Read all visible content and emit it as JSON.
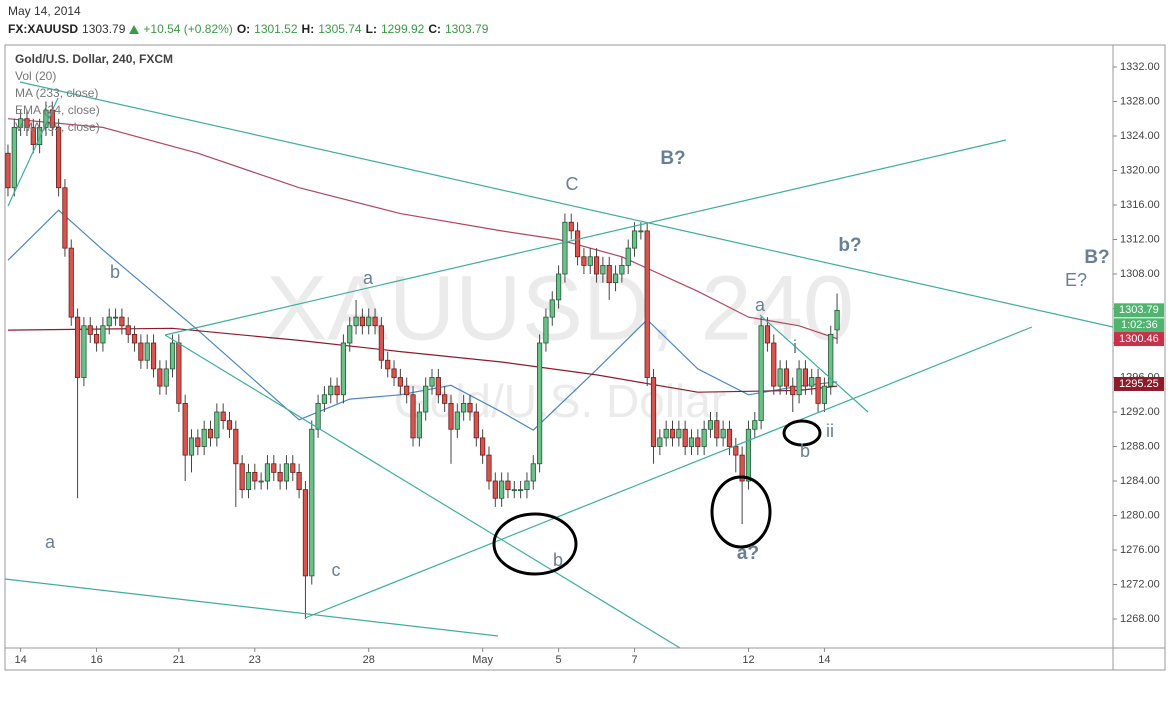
{
  "header": {
    "date": "May 14, 2014",
    "symbol": "FX:XAUUSD",
    "last": 1303.79,
    "change": "+10.54 (+0.82%)",
    "o_label": "O:",
    "open": 1301.52,
    "h_label": "H:",
    "high": 1305.74,
    "l_label": "L:",
    "low": 1299.92,
    "c_label": "C:",
    "close": 1303.79
  },
  "chart_data": {
    "type": "candlestick",
    "title": "Gold/U.S. Dollar, 240, FXCM",
    "volume_label": "Vol (20)",
    "watermark": [
      "XAUUSD, 240",
      "Gold/U.S. Dollar"
    ],
    "colors": {
      "up": "#6cc08a",
      "down": "#d9534f",
      "up_border": "#1f5a35",
      "down_border": "#6b1e1a",
      "wick": "#444444"
    },
    "grid": false,
    "ylim": [
      1264.64,
      1334.55
    ],
    "xlim": [
      -0.47,
      174.6
    ],
    "yticks": [
      {
        "value": 1268,
        "label": "1268.00"
      },
      {
        "value": 1272,
        "label": "1272.00"
      },
      {
        "value": 1276,
        "label": "1276.00"
      },
      {
        "value": 1280,
        "label": "1280.00"
      },
      {
        "value": 1284,
        "label": "1284.00"
      },
      {
        "value": 1288,
        "label": "1288.00"
      },
      {
        "value": 1292,
        "label": "1292.00"
      },
      {
        "value": 1296,
        "label": "1296.00"
      },
      {
        "value": 1300,
        "label": "1300.00"
      },
      {
        "value": 1304,
        "label": "1304.00"
      },
      {
        "value": 1308,
        "label": "1308.00"
      },
      {
        "value": 1312,
        "label": "1312.00"
      },
      {
        "value": 1316,
        "label": "1316.00"
      },
      {
        "value": 1320,
        "label": "1320.00"
      },
      {
        "value": 1324,
        "label": "1324.00"
      },
      {
        "value": 1328,
        "label": "1328.00"
      },
      {
        "value": 1332,
        "label": "1332.00"
      }
    ],
    "xticks": [
      {
        "value": 2,
        "label": "14"
      },
      {
        "value": 14,
        "label": "16"
      },
      {
        "value": 27,
        "label": "21"
      },
      {
        "value": 39,
        "label": "23"
      },
      {
        "value": 57,
        "label": "28"
      },
      {
        "value": 75,
        "label": "May"
      },
      {
        "value": 87,
        "label": "5"
      },
      {
        "value": 99,
        "label": "7"
      },
      {
        "value": 117,
        "label": "12"
      },
      {
        "value": 129,
        "label": "14"
      }
    ],
    "ohlc": [
      [
        1322,
        1323,
        1317,
        1318
      ],
      [
        1318,
        1326,
        1317,
        1325
      ],
      [
        1325,
        1327,
        1324,
        1326
      ],
      [
        1326,
        1327,
        1324,
        1325
      ],
      [
        1325,
        1326,
        1322,
        1323
      ],
      [
        1323,
        1326,
        1322,
        1325
      ],
      [
        1325,
        1328,
        1324,
        1327
      ],
      [
        1327,
        1328,
        1324,
        1325
      ],
      [
        1325,
        1326,
        1317,
        1318
      ],
      [
        1318,
        1319,
        1310,
        1311
      ],
      [
        1311,
        1312,
        1302,
        1303
      ],
      [
        1303,
        1304,
        1282,
        1296
      ],
      [
        1296,
        1303,
        1295,
        1302
      ],
      [
        1302,
        1303,
        1300,
        1301
      ],
      [
        1301,
        1302,
        1299,
        1300
      ],
      [
        1300,
        1303,
        1299,
        1302
      ],
      [
        1302,
        1304,
        1301,
        1303
      ],
      [
        1303,
        1304,
        1302,
        1303
      ],
      [
        1303,
        1304,
        1301,
        1302
      ],
      [
        1302,
        1303,
        1300,
        1301
      ],
      [
        1301,
        1302,
        1299,
        1300
      ],
      [
        1300,
        1301,
        1297,
        1298
      ],
      [
        1298,
        1301,
        1297,
        1300
      ],
      [
        1300,
        1301,
        1296,
        1297
      ],
      [
        1297,
        1298,
        1294,
        1295
      ],
      [
        1295,
        1298,
        1294,
        1297
      ],
      [
        1297,
        1301,
        1296,
        1300
      ],
      [
        1300,
        1301,
        1292,
        1293
      ],
      [
        1293,
        1294,
        1284,
        1287
      ],
      [
        1287,
        1290,
        1285,
        1289
      ],
      [
        1289,
        1290,
        1287,
        1288
      ],
      [
        1288,
        1291,
        1287,
        1290
      ],
      [
        1290,
        1291,
        1288,
        1289
      ],
      [
        1289,
        1293,
        1288,
        1292
      ],
      [
        1292,
        1293,
        1290,
        1291
      ],
      [
        1291,
        1292,
        1289,
        1290
      ],
      [
        1290,
        1291,
        1281,
        1286
      ],
      [
        1286,
        1287,
        1282,
        1283
      ],
      [
        1283,
        1286,
        1282,
        1285
      ],
      [
        1285,
        1286,
        1283,
        1284
      ],
      [
        1284,
        1285,
        1283,
        1284
      ],
      [
        1284,
        1287,
        1283,
        1286
      ],
      [
        1286,
        1287,
        1284,
        1285
      ],
      [
        1285,
        1286,
        1283,
        1284
      ],
      [
        1284,
        1287,
        1283,
        1286
      ],
      [
        1286,
        1287,
        1284,
        1285
      ],
      [
        1285,
        1286,
        1282,
        1283
      ],
      [
        1283,
        1284,
        1268,
        1273
      ],
      [
        1273,
        1291,
        1272,
        1290
      ],
      [
        1290,
        1294,
        1289,
        1293
      ],
      [
        1293,
        1295,
        1292,
        1294
      ],
      [
        1294,
        1296,
        1293,
        1295
      ],
      [
        1295,
        1296,
        1293,
        1294
      ],
      [
        1294,
        1301,
        1293,
        1300
      ],
      [
        1300,
        1303,
        1299,
        1302
      ],
      [
        1302,
        1305,
        1301,
        1303
      ],
      [
        1303,
        1304,
        1301,
        1302
      ],
      [
        1302,
        1304,
        1301,
        1303
      ],
      [
        1303,
        1304,
        1301,
        1302
      ],
      [
        1302,
        1303,
        1297,
        1298
      ],
      [
        1298,
        1299,
        1296,
        1297
      ],
      [
        1297,
        1298,
        1295,
        1296
      ],
      [
        1296,
        1297,
        1294,
        1295
      ],
      [
        1295,
        1296,
        1293,
        1294
      ],
      [
        1294,
        1295,
        1288,
        1289
      ],
      [
        1289,
        1293,
        1288,
        1292
      ],
      [
        1292,
        1296,
        1291,
        1295
      ],
      [
        1295,
        1297,
        1294,
        1296
      ],
      [
        1296,
        1297,
        1293,
        1294
      ],
      [
        1294,
        1295,
        1292,
        1293
      ],
      [
        1293,
        1294,
        1286,
        1290
      ],
      [
        1290,
        1293,
        1289,
        1292
      ],
      [
        1292,
        1294,
        1291,
        1293
      ],
      [
        1293,
        1294,
        1291,
        1292
      ],
      [
        1292,
        1293,
        1288,
        1289
      ],
      [
        1289,
        1290,
        1286,
        1287
      ],
      [
        1287,
        1288,
        1283,
        1284
      ],
      [
        1284,
        1285,
        1281,
        1282
      ],
      [
        1282,
        1285,
        1281,
        1284
      ],
      [
        1284,
        1285,
        1282,
        1283
      ],
      [
        1283,
        1284,
        1282,
        1283
      ],
      [
        1283,
        1284,
        1282,
        1283
      ],
      [
        1283,
        1285,
        1282,
        1284
      ],
      [
        1284,
        1287,
        1283,
        1286
      ],
      [
        1286,
        1301,
        1285,
        1300
      ],
      [
        1300,
        1304,
        1299,
        1303
      ],
      [
        1303,
        1306,
        1302,
        1305
      ],
      [
        1305,
        1309,
        1304,
        1308
      ],
      [
        1308,
        1315,
        1307,
        1314
      ],
      [
        1314,
        1315,
        1312,
        1313
      ],
      [
        1313,
        1314,
        1309,
        1310
      ],
      [
        1310,
        1311,
        1308,
        1309
      ],
      [
        1309,
        1311,
        1308,
        1310
      ],
      [
        1310,
        1311,
        1307,
        1308
      ],
      [
        1308,
        1310,
        1307,
        1309
      ],
      [
        1309,
        1310,
        1305,
        1307
      ],
      [
        1307,
        1309,
        1306,
        1308
      ],
      [
        1308,
        1310,
        1307,
        1309
      ],
      [
        1309,
        1312,
        1308,
        1311
      ],
      [
        1311,
        1314,
        1310,
        1313
      ],
      [
        1313,
        1314,
        1312,
        1313
      ],
      [
        1313,
        1314,
        1295,
        1296
      ],
      [
        1296,
        1297,
        1286,
        1288
      ],
      [
        1288,
        1290,
        1287,
        1289
      ],
      [
        1289,
        1291,
        1288,
        1290
      ],
      [
        1290,
        1291,
        1288,
        1289
      ],
      [
        1289,
        1291,
        1288,
        1290
      ],
      [
        1290,
        1291,
        1287,
        1288
      ],
      [
        1288,
        1290,
        1287,
        1289
      ],
      [
        1289,
        1290,
        1287,
        1288
      ],
      [
        1288,
        1291,
        1287,
        1290
      ],
      [
        1290,
        1292,
        1289,
        1291
      ],
      [
        1291,
        1292,
        1288,
        1289
      ],
      [
        1289,
        1291,
        1288,
        1290
      ],
      [
        1290,
        1291,
        1287,
        1288
      ],
      [
        1288,
        1289,
        1285,
        1287
      ],
      [
        1287,
        1288,
        1279,
        1284
      ],
      [
        1284,
        1291,
        1283,
        1290
      ],
      [
        1290,
        1292,
        1289,
        1291
      ],
      [
        1291,
        1303,
        1290,
        1302
      ],
      [
        1302,
        1303,
        1299,
        1300
      ],
      [
        1300,
        1301,
        1294,
        1295
      ],
      [
        1295,
        1298,
        1294,
        1297
      ],
      [
        1297,
        1298,
        1294,
        1295
      ],
      [
        1295,
        1296,
        1292,
        1294
      ],
      [
        1294,
        1298,
        1293,
        1297
      ],
      [
        1297,
        1298,
        1294,
        1295
      ],
      [
        1295,
        1297,
        1294,
        1296
      ],
      [
        1296,
        1297,
        1292,
        1293
      ],
      [
        1293,
        1296,
        1292,
        1295
      ],
      [
        1295,
        1302,
        1294,
        1301
      ],
      [
        1301.52,
        1305.74,
        1299.92,
        1303.79
      ]
    ],
    "lines": [
      {
        "name": "MA (233, close)",
        "color": "#b5455e",
        "x": [
          0,
          15,
          30,
          46,
          62,
          78,
          87,
          97,
          109,
          117,
          125,
          131
        ],
        "values": [
          1326,
          1325,
          1322,
          1318,
          1315,
          1313,
          1312,
          1310,
          1306,
          1303,
          1302,
          1300.5
        ]
      },
      {
        "name": "EMA (34, close)",
        "color": "#4a86c5",
        "x": [
          0,
          8,
          15,
          30,
          46,
          54,
          62,
          70,
          78,
          83,
          93,
          101,
          109,
          117,
          125,
          131
        ],
        "values": [
          1309.6,
          1315.4,
          1310.8,
          1301.5,
          1291.1,
          1293.5,
          1294,
          1295.1,
          1292,
          1289.9,
          1296.9,
          1302.7,
          1297,
          1294,
          1295,
          1295.5
        ]
      },
      {
        "name": "VMA (35, close)",
        "color": "#8e1b2a",
        "x": [
          0,
          26,
          46,
          62,
          78,
          93,
          109,
          125,
          131
        ],
        "values": [
          1301.5,
          1301.7,
          1300.3,
          1299,
          1297.8,
          1296.3,
          1294.3,
          1294.5,
          1295
        ]
      }
    ],
    "price_labels": [
      {
        "value": 1303.79,
        "color": "#4fb56e"
      },
      {
        "value": 1300.46,
        "color": "#c8314a"
      },
      {
        "value": 1295.25,
        "color": "#8e1b2a"
      }
    ],
    "countdown": "1:02:36",
    "annotations": [
      "a",
      "b",
      "c",
      "a",
      "C",
      "B?",
      "b?",
      "B?",
      "E?",
      "a",
      "i",
      "ii",
      "b",
      "a?",
      "b"
    ]
  }
}
